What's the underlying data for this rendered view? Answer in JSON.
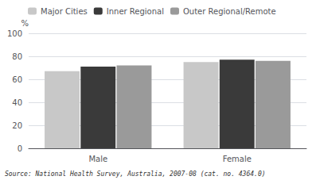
{
  "chart_data": {
    "type": "bar",
    "categories": [
      "Male",
      "Female"
    ],
    "series": [
      {
        "name": "Major Cities",
        "color": "#c8c8c8",
        "values": [
          67,
          75
        ]
      },
      {
        "name": "Inner Regional",
        "color": "#3a3a3a",
        "values": [
          71,
          77
        ]
      },
      {
        "name": "Outer Regional/Remote",
        "color": "#9a9a9a",
        "values": [
          72,
          76
        ]
      }
    ],
    "ylabel": "%",
    "ylim": [
      0,
      100
    ],
    "yticks": [
      0,
      20,
      40,
      60,
      80,
      100
    ],
    "grid": true,
    "legend": "upper left",
    "source": "Source: National Health Survey, Australia, 2007-08 (cat. no. 4364.0)"
  }
}
